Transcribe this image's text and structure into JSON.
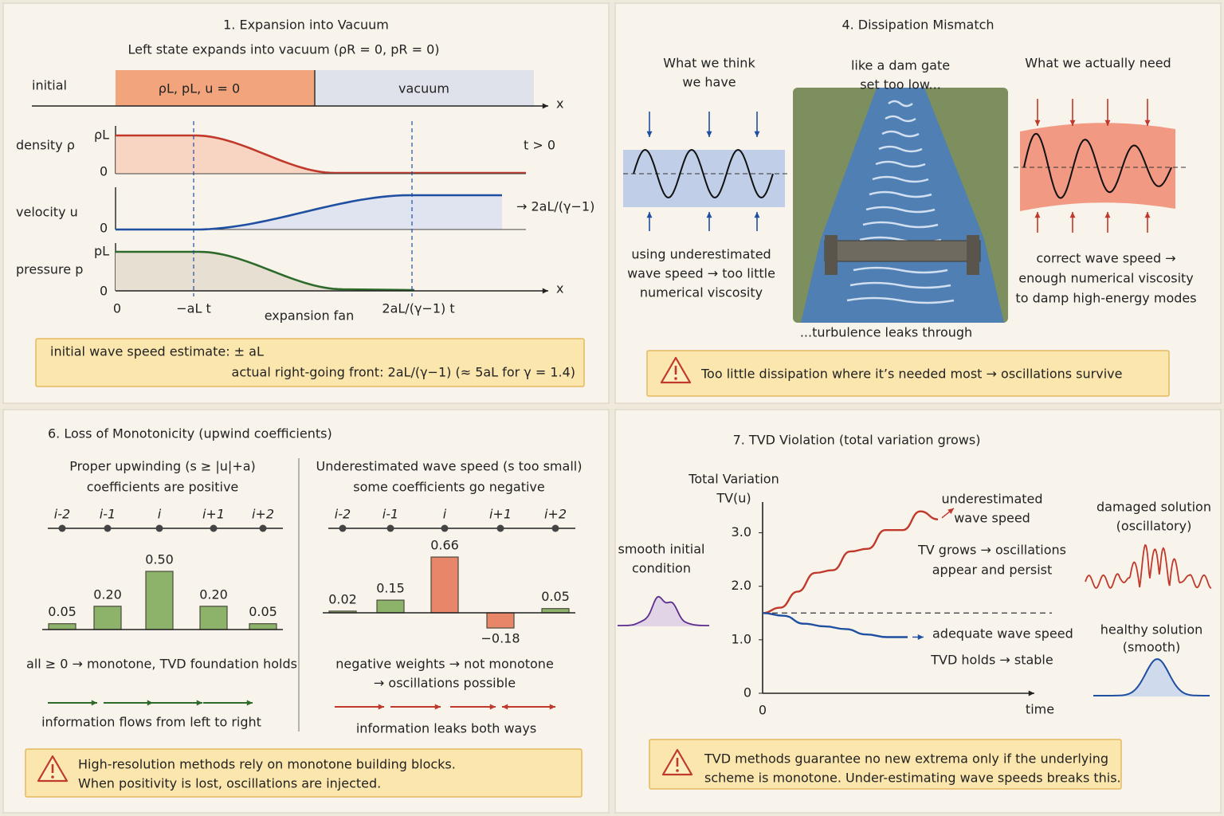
{
  "expansion": {
    "title": "1. Expansion into Vacuum",
    "subtitle": "Left state expands into vacuum (ρR = 0, pR = 0)",
    "initial_label": "initial",
    "left_state": "ρL, pL, u = 0",
    "right_state": "vacuum",
    "x_label": "x",
    "density_label": "density ρ",
    "density_top": "ρL",
    "zero": "0",
    "time_note": "t > 0",
    "velocity_label": "velocity u",
    "velocity_limit": "→ 2aL/(γ−1)",
    "pressure_label": "pressure p",
    "pressure_top": "pL",
    "x_marks": [
      "0",
      "−aL t",
      "2aL/(γ−1) t"
    ],
    "fan_label": "expansion fan",
    "box": [
      "initial wave speed estimate: ± aL",
      "actual right-going front: 2aL/(γ−1) (≈ 5aL for γ = 1.4)"
    ]
  },
  "dissipation": {
    "title": "4. Dissipation Mismatch",
    "think_heading": [
      "What we think",
      "we have"
    ],
    "think_note": [
      "using underestimated",
      "wave speed → too little",
      "numerical viscosity"
    ],
    "dam_heading": [
      "like a dam gate",
      "set too low..."
    ],
    "dam_note": "...turbulence leaks through",
    "need_heading": "What we actually need",
    "need_note": [
      "correct wave speed →",
      "enough numerical viscosity",
      "to damp high-energy modes"
    ],
    "warning": "Too little dissipation where it’s needed most → oscillations survive"
  },
  "monotonicity": {
    "title": "6. Loss of Monotonicity (upwind coefficients)",
    "nodes": [
      "i-2",
      "i-1",
      "i",
      "i+1",
      "i+2"
    ],
    "proper": {
      "heading": [
        "Proper upwinding (s ≥ |u|+a)",
        "coefficients are positive"
      ],
      "values": [
        0.05,
        0.2,
        0.5,
        0.2,
        0.05
      ],
      "value_labels": [
        "0.05",
        "0.20",
        "0.50",
        "0.20",
        "0.05"
      ],
      "colors": [
        "#8db36b",
        "#8db36b",
        "#8db36b",
        "#8db36b",
        "#8db36b"
      ],
      "note": "all ≥ 0 → monotone, TVD foundation holds",
      "flow": "information flows from left to right"
    },
    "under": {
      "heading": [
        "Underestimated wave speed (s too small)",
        "some coefficients go negative"
      ],
      "values": [
        0.02,
        0.15,
        0.66,
        -0.18,
        0.05
      ],
      "value_labels": [
        "0.02",
        "0.15",
        "0.66",
        "−0.18",
        "0.05"
      ],
      "colors": [
        "#8db36b",
        "#8db36b",
        "#e8866a",
        "#e8866a",
        "#8db36b"
      ],
      "note": [
        "negative weights → not monotone",
        "→ oscillations possible"
      ],
      "flow": "information leaks both ways"
    },
    "warning": [
      "High-resolution methods rely on monotone building blocks.",
      "When positivity is lost, oscillations are injected."
    ]
  },
  "tvd": {
    "title": "7. TVD Violation (total variation grows)",
    "y_label": [
      "Total Variation",
      "TV(u)"
    ],
    "x_label": "time",
    "x_origin": "0",
    "ylim": [
      0,
      3.5
    ],
    "yticks": [
      0,
      {
        "value": 1,
        "label": "1.0"
      },
      {
        "value": 2,
        "label": "2.0"
      },
      {
        "value": 3,
        "label": "3.0"
      }
    ],
    "initial_tv": 1.5,
    "series": [
      {
        "name": [
          "underestimated",
          "wave speed"
        ],
        "color": "#c0392b",
        "values": [
          1.5,
          1.6,
          1.9,
          2.25,
          2.3,
          2.65,
          2.7,
          3.05,
          3.05,
          3.4,
          3.25
        ]
      },
      {
        "name": "adequate wave speed",
        "color": "#1f4fa0",
        "values": [
          1.5,
          1.45,
          1.3,
          1.25,
          1.2,
          1.1,
          1.05,
          1.05
        ]
      }
    ],
    "grow_note": [
      "TV grows → oscillations",
      "appear and persist"
    ],
    "hold_note": "TVD holds → stable",
    "initial_note": [
      "smooth initial",
      "condition"
    ],
    "damaged_note": [
      "damaged solution",
      "(oscillatory)"
    ],
    "healthy_note": [
      "healthy solution",
      "(smooth)"
    ],
    "warning": [
      "TVD methods guarantee no new extrema only if the underlying",
      "scheme is monotone. Under-estimating wave speeds breaks this."
    ]
  }
}
